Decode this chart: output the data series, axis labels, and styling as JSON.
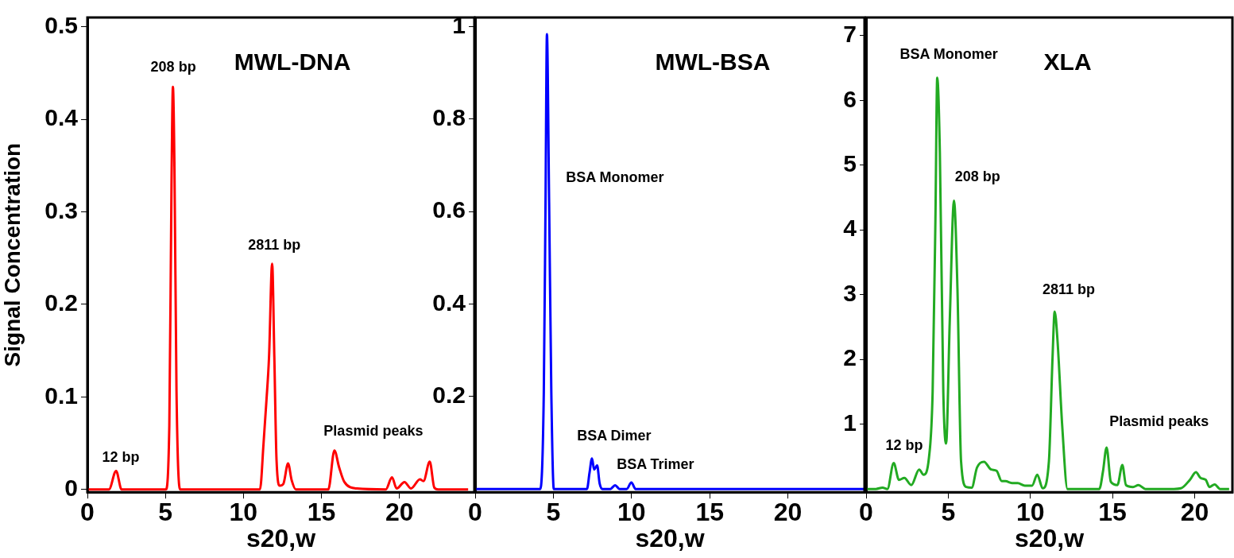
{
  "chart_data": [
    {
      "type": "line",
      "title": "MWL-DNA",
      "ylabel": "Signal Concentration",
      "xlabel": "s20,w",
      "xlim": [
        0,
        24.8
      ],
      "xticks": [
        0,
        5,
        10,
        15,
        20
      ],
      "ylim": [
        -0.003,
        0.51
      ],
      "yticks": [
        0,
        0.1,
        0.2,
        0.3,
        0.4,
        0.5
      ],
      "grid": false,
      "legend": false,
      "marker": "none",
      "line_style": "solid",
      "series": [
        {
          "color": "#ff0000",
          "x": [
            0,
            1.38,
            1.84,
            2.19,
            5.02,
            5.25,
            5.39,
            5.48,
            5.58,
            5.71,
            5.94,
            11.06,
            11.29,
            11.47,
            11.64,
            11.84,
            11.98,
            12.12,
            12.33,
            12.56,
            12.86,
            13.09,
            13.36,
            15.44,
            15.83,
            16.13,
            16.47,
            17.28,
            19.12,
            19.52,
            19.82,
            20.32,
            20.74,
            21.31,
            21.54,
            21.94,
            22.23,
            22.47,
            24.4
          ],
          "values": [
            0,
            0,
            0.02,
            0,
            0,
            0.069,
            0.329,
            0.435,
            0.347,
            0.106,
            0,
            0,
            0.05,
            0.095,
            0.143,
            0.244,
            0.143,
            0.032,
            0.004,
            0.006,
            0.028,
            0.01,
            0,
            0,
            0.042,
            0.024,
            0.008,
            0.001,
            0,
            0.013,
            0.001,
            0.008,
            0.001,
            0.011,
            0.009,
            0.03,
            0.002,
            0,
            0
          ]
        }
      ],
      "annotations": [
        "12 bp",
        "208 bp",
        "2811 bp",
        "Plasmid peaks"
      ]
    },
    {
      "type": "line",
      "title": "MWL-BSA",
      "xlabel": "s20,w",
      "xlim": [
        0,
        24.9
      ],
      "xticks": [
        0,
        5,
        10,
        15,
        20
      ],
      "ylim": [
        -0.007,
        1.02
      ],
      "yticks": [
        0.2,
        0.4,
        0.6,
        0.8,
        1
      ],
      "grid": false,
      "legend": false,
      "marker": "none",
      "line_style": "solid",
      "series": [
        {
          "color": "#0000ff",
          "x": [
            0,
            4.16,
            4.39,
            4.5,
            4.59,
            4.73,
            4.87,
            5.03,
            7.15,
            7.31,
            7.47,
            7.61,
            7.8,
            7.96,
            8.14,
            8.65,
            8.95,
            9.23,
            9.69,
            9.99,
            10.26,
            24.9
          ],
          "values": [
            0,
            0,
            0.21,
            0.62,
            0.984,
            0.62,
            0.21,
            0,
            0,
            0.034,
            0.066,
            0.042,
            0.051,
            0.012,
            0,
            0,
            0.008,
            0,
            0,
            0.014,
            0,
            0
          ]
        }
      ],
      "annotations": [
        "BSA Monomer",
        "BSA Dimer",
        "BSA Trimer"
      ]
    },
    {
      "type": "line",
      "title": "XLA",
      "xlabel": "s20,w",
      "xlim": [
        0,
        22.3
      ],
      "xticks": [
        0,
        5,
        10,
        15,
        20
      ],
      "ylim": [
        -0.05,
        7.28
      ],
      "yticks": [
        1,
        2,
        3,
        4,
        5,
        6,
        7
      ],
      "grid": false,
      "legend": false,
      "marker": "none",
      "line_style": "solid",
      "series": [
        {
          "color": "#22aa22",
          "x": [
            0,
            0.6,
            1.0,
            1.3,
            1.68,
            2.0,
            2.33,
            2.75,
            3.23,
            3.5,
            3.83,
            4.05,
            4.22,
            4.33,
            4.49,
            4.7,
            4.87,
            5.09,
            5.35,
            5.56,
            5.78,
            6.1,
            6.43,
            6.75,
            7.18,
            7.61,
            7.94,
            8.26,
            8.48,
            8.9,
            9.23,
            9.66,
            10.1,
            10.42,
            10.75,
            11.13,
            11.35,
            11.48,
            11.65,
            11.94,
            12.26,
            14.2,
            14.42,
            14.64,
            14.9,
            15.3,
            15.6,
            15.82,
            16.25,
            16.58,
            17.0,
            17.66,
            18.74,
            19.17,
            19.71,
            20.08,
            20.36,
            20.68,
            20.9,
            21.22,
            21.55,
            22.1
          ],
          "values": [
            0,
            0,
            0.02,
            0,
            0.4,
            0.14,
            0.17,
            0.06,
            0.3,
            0.22,
            0.49,
            1.5,
            4.17,
            6.35,
            5.2,
            1.5,
            0.7,
            2.57,
            4.45,
            3.1,
            0.43,
            0.03,
            0.02,
            0.33,
            0.42,
            0.3,
            0.28,
            0.12,
            0.12,
            0.09,
            0.09,
            0.05,
            0.05,
            0.22,
            0.01,
            0.43,
            2.03,
            2.74,
            2.3,
            0.97,
            0,
            0,
            0.27,
            0.64,
            0.11,
            0.06,
            0.37,
            0.06,
            0.03,
            0.06,
            0,
            0,
            0,
            0.01,
            0.14,
            0.26,
            0.17,
            0.14,
            0.03,
            0.07,
            0,
            0
          ]
        }
      ],
      "annotations": [
        "12 bp",
        "BSA Monomer",
        "208 bp",
        "2811 bp",
        "Plasmid peaks"
      ]
    }
  ]
}
